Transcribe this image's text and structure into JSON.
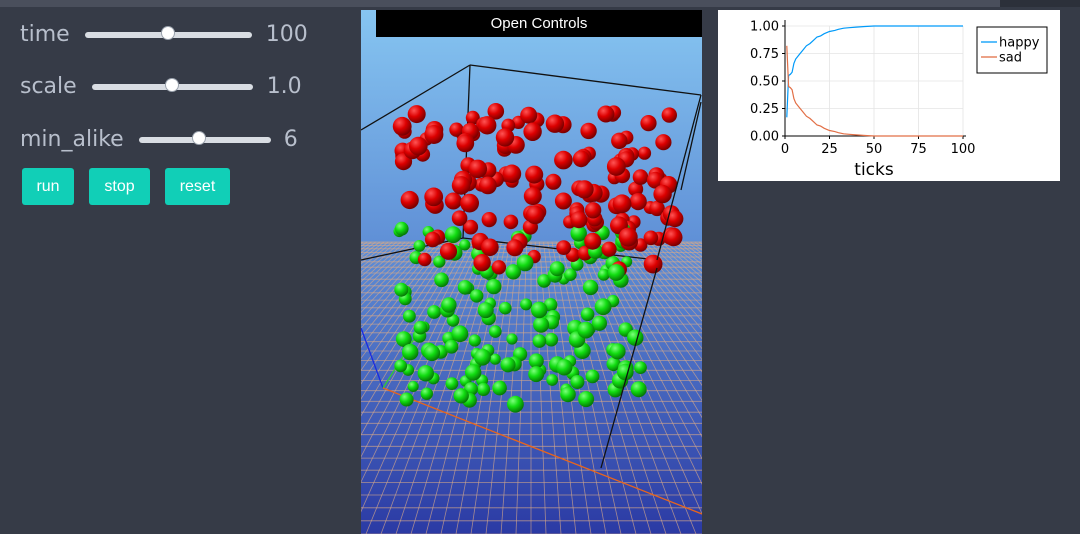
{
  "controls": {
    "sliders": [
      {
        "label": "time",
        "value": "100",
        "fraction": 0.5
      },
      {
        "label": "scale",
        "value": "1.0",
        "fraction": 0.5
      },
      {
        "label": "min_alike",
        "value": "6",
        "fraction": 0.46
      }
    ],
    "buttons": {
      "run": "run",
      "stop": "stop",
      "reset": "reset"
    }
  },
  "scene": {
    "open_controls_label": "Open Controls",
    "colors": {
      "group_a": "#dd0000",
      "group_b": "#11dd11",
      "background_top": "#86c5f1",
      "background_bottom": "#2b3aa4",
      "grid": "#d6a889"
    }
  },
  "chart_data": {
    "type": "line",
    "xlabel": "ticks",
    "ylabel": "",
    "xlim": [
      0,
      100
    ],
    "ylim": [
      0,
      1
    ],
    "xticks": [
      "0",
      "25",
      "50",
      "75",
      "100"
    ],
    "yticks": [
      "0.00",
      "0.25",
      "0.50",
      "0.75",
      "1.00"
    ],
    "grid": true,
    "legend": "top-right",
    "series": [
      {
        "name": "happy",
        "color": "#009af9",
        "x": [
          1,
          2,
          3,
          4,
          5,
          6,
          8,
          10,
          12,
          14,
          16,
          18,
          20,
          22,
          25,
          28,
          30,
          33,
          36,
          40,
          45,
          50,
          55,
          60,
          70,
          80,
          90,
          100
        ],
        "y": [
          0.17,
          0.55,
          0.56,
          0.58,
          0.66,
          0.7,
          0.74,
          0.78,
          0.82,
          0.84,
          0.87,
          0.9,
          0.91,
          0.93,
          0.95,
          0.96,
          0.97,
          0.98,
          0.985,
          0.99,
          0.995,
          1.0,
          1.0,
          1.0,
          1.0,
          1.0,
          1.0,
          1.0
        ]
      },
      {
        "name": "sad",
        "color": "#e26f46",
        "x": [
          1,
          2,
          3,
          4,
          5,
          6,
          8,
          10,
          12,
          14,
          16,
          18,
          20,
          22,
          25,
          28,
          30,
          33,
          36,
          40,
          45,
          50,
          55,
          60,
          70,
          80,
          90,
          100
        ],
        "y": [
          0.82,
          0.45,
          0.44,
          0.42,
          0.34,
          0.3,
          0.26,
          0.22,
          0.18,
          0.16,
          0.13,
          0.1,
          0.09,
          0.07,
          0.05,
          0.04,
          0.03,
          0.02,
          0.015,
          0.01,
          0.005,
          0.0,
          0.0,
          0.0,
          0.0,
          0.0,
          0.0,
          0.0
        ]
      }
    ]
  }
}
